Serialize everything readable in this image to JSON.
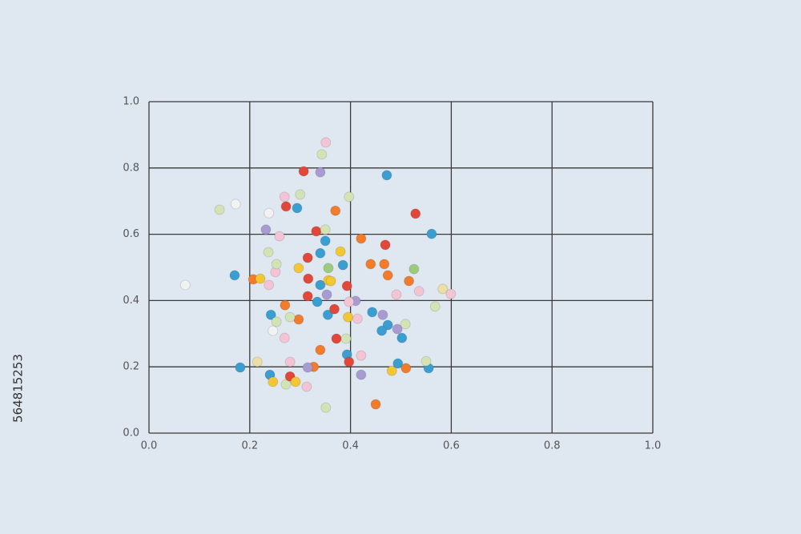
{
  "chart_data": {
    "type": "scatter",
    "xlim": [
      0,
      1
    ],
    "ylim": [
      0,
      1
    ],
    "xticks": [
      {
        "value": 0,
        "label": "0.0"
      },
      0.2,
      0.4,
      0.6,
      0.8,
      {
        "value": 1,
        "label": "1.0"
      }
    ],
    "yticks": [
      {
        "value": 0,
        "label": "0.0"
      },
      0.2,
      0.4,
      0.6,
      0.8,
      {
        "value": 1,
        "label": "1.0"
      }
    ],
    "grid": true,
    "x": [
      0.072,
      0.14,
      0.172,
      0.17,
      0.181,
      0.215,
      0.207,
      0.232,
      0.238,
      0.307,
      0.34,
      0.343,
      0.351,
      0.3,
      0.272,
      0.294,
      0.269,
      0.397,
      0.472,
      0.529,
      0.561,
      0.37,
      0.332,
      0.35,
      0.35,
      0.421,
      0.469,
      0.44,
      0.38,
      0.385,
      0.356,
      0.315,
      0.297,
      0.316,
      0.34,
      0.356,
      0.393,
      0.41,
      0.315,
      0.334,
      0.353,
      0.237,
      0.238,
      0.251,
      0.27,
      0.242,
      0.253,
      0.246,
      0.269,
      0.297,
      0.355,
      0.368,
      0.395,
      0.414,
      0.443,
      0.464,
      0.474,
      0.462,
      0.493,
      0.502,
      0.509,
      0.372,
      0.391,
      0.34,
      0.393,
      0.421,
      0.397,
      0.327,
      0.315,
      0.28,
      0.24,
      0.246,
      0.272,
      0.28,
      0.291,
      0.313,
      0.351,
      0.421,
      0.45,
      0.482,
      0.494,
      0.51,
      0.555,
      0.55,
      0.568,
      0.583,
      0.599,
      0.526,
      0.516,
      0.536,
      0.491,
      0.467,
      0.474,
      0.397,
      0.221,
      0.259,
      0.253,
      0.361,
      0.34,
      0.28
    ],
    "y": [
      0.447,
      0.674,
      0.691,
      0.476,
      0.198,
      0.215,
      0.464,
      0.614,
      0.664,
      0.79,
      0.787,
      0.841,
      0.877,
      0.72,
      0.684,
      0.679,
      0.713,
      0.713,
      0.778,
      0.662,
      0.601,
      0.671,
      0.609,
      0.614,
      0.58,
      0.587,
      0.568,
      0.51,
      0.548,
      0.507,
      0.498,
      0.529,
      0.498,
      0.466,
      0.447,
      0.461,
      0.444,
      0.399,
      0.413,
      0.396,
      0.418,
      0.546,
      0.447,
      0.486,
      0.386,
      0.357,
      0.336,
      0.309,
      0.287,
      0.343,
      0.357,
      0.374,
      0.35,
      0.345,
      0.365,
      0.357,
      0.326,
      0.309,
      0.314,
      0.287,
      0.329,
      0.285,
      0.285,
      0.251,
      0.237,
      0.234,
      0.215,
      0.2,
      0.198,
      0.215,
      0.176,
      0.155,
      0.147,
      0.171,
      0.155,
      0.14,
      0.077,
      0.176,
      0.087,
      0.188,
      0.21,
      0.196,
      0.196,
      0.217,
      0.382,
      0.435,
      0.42,
      0.495,
      0.459,
      0.428,
      0.418,
      0.51,
      0.476,
      0.396,
      0.466,
      0.594,
      0.51,
      0.459,
      0.543,
      0.35
    ],
    "colors": [
      "#f1f2f2",
      "#d4e3b6",
      "#f1f2f2",
      "#3b9ed0",
      "#3b9ed0",
      "#ebdfa6",
      "#f07c2c",
      "#a89bd2",
      "#f1f2f2",
      "#e2483a",
      "#a89bd2",
      "#d4e3b6",
      "#f3c4d4",
      "#d4e3b6",
      "#e2483a",
      "#3b9ed0",
      "#f3c4d4",
      "#d4e3b6",
      "#3b9ed0",
      "#e2483a",
      "#3b9ed0",
      "#f07c2c",
      "#e2483a",
      "#d4e3b6",
      "#3b9ed0",
      "#f07c2c",
      "#e2483a",
      "#f07c2c",
      "#f3c634",
      "#3b9ed0",
      "#9ccb7e",
      "#e2483a",
      "#f3c634",
      "#e2483a",
      "#3b9ed0",
      "#f3c634",
      "#e2483a",
      "#a89bd2",
      "#e2483a",
      "#3b9ed0",
      "#a89bd2",
      "#d4e3b6",
      "#f3c4d4",
      "#f3c4d4",
      "#f07c2c",
      "#3b9ed0",
      "#d4e3b6",
      "#f1f2f2",
      "#f3c4d4",
      "#f07c2c",
      "#3b9ed0",
      "#e2483a",
      "#f3c634",
      "#f3c4d4",
      "#3b9ed0",
      "#a89bd2",
      "#3b9ed0",
      "#3b9ed0",
      "#a89bd2",
      "#3b9ed0",
      "#d4e3b6",
      "#e2483a",
      "#d4e3b6",
      "#f07c2c",
      "#3b9ed0",
      "#f3c4d4",
      "#e2483a",
      "#f07c2c",
      "#a89bd2",
      "#f3c4d4",
      "#3b9ed0",
      "#f3c634",
      "#d4e3b6",
      "#e2483a",
      "#f3c634",
      "#f3c4d4",
      "#d4e3b6",
      "#a89bd2",
      "#f07c2c",
      "#f3c634",
      "#3b9ed0",
      "#f07c2c",
      "#3b9ed0",
      "#d4e3b6",
      "#d4e3b6",
      "#ebdfa6",
      "#f3c4d4",
      "#9ccb7e",
      "#f07c2c",
      "#f3c4d4",
      "#f3c4d4",
      "#f07c2c",
      "#f07c2c",
      "#f3c4d4",
      "#f3c634",
      "#f3c4d4",
      "#d4e3b6",
      "#f3c634",
      "#3b9ed0",
      "#d4e3b6"
    ]
  },
  "watermark": "564815253"
}
